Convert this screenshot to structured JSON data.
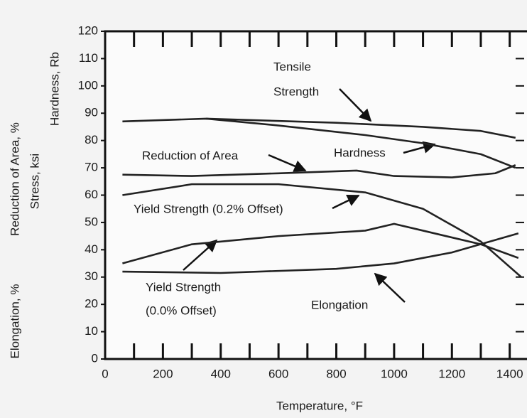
{
  "chart_data": {
    "type": "line",
    "x_label": "Temperature, °F",
    "y_labels": [
      "Reduction of Area, %",
      "Elongation, %",
      "Stress, ksi",
      "Hardness, Rb"
    ],
    "xlim": [
      0,
      1450
    ],
    "ylim": [
      0,
      120
    ],
    "xticks": [
      0,
      200,
      400,
      600,
      800,
      1000,
      1200,
      1400
    ],
    "yticks": [
      0,
      10,
      20,
      30,
      40,
      50,
      60,
      70,
      80,
      90,
      100,
      110,
      120
    ],
    "series": [
      {
        "name": "Tensile Strength",
        "color": "#222222",
        "x": [
          60,
          350,
          800,
          1100,
          1300,
          1420
        ],
        "values": [
          87,
          88,
          86.5,
          85,
          83.5,
          81
        ]
      },
      {
        "name": "Hardness",
        "color": "#222222",
        "x": [
          350,
          600,
          900,
          1100,
          1300,
          1420
        ],
        "values": [
          88,
          85.5,
          82,
          79,
          75,
          70
        ]
      },
      {
        "name": "Reduction of Area",
        "color": "#222222",
        "x": [
          60,
          300,
          600,
          870,
          1000,
          1200,
          1350,
          1420
        ],
        "values": [
          67.5,
          67,
          68,
          69,
          67,
          66.5,
          68,
          71
        ]
      },
      {
        "name": "Yield Strength (0.2% Offset)",
        "color": "#222222",
        "x": [
          60,
          300,
          600,
          900,
          1100,
          1300,
          1440
        ],
        "values": [
          60,
          64,
          64,
          61,
          55,
          43,
          30
        ]
      },
      {
        "name": "Yield Strength (0.0% Offset)",
        "color": "#222222",
        "x": [
          60,
          300,
          600,
          900,
          1000,
          1100,
          1300,
          1430
        ],
        "values": [
          35,
          42,
          45,
          47,
          49.5,
          47,
          42,
          37
        ]
      },
      {
        "name": "Elongation",
        "color": "#222222",
        "x": [
          60,
          400,
          800,
          1000,
          1200,
          1430
        ],
        "values": [
          32,
          31.5,
          33,
          35,
          39,
          46
        ]
      }
    ],
    "annotations": [
      "Tensile",
      "Strength",
      "Hardness",
      "Reduction of Area",
      "Yield Strength (0.2% Offset)",
      "Yield Strength",
      "(0.0% Offset)",
      "Elongation"
    ]
  }
}
